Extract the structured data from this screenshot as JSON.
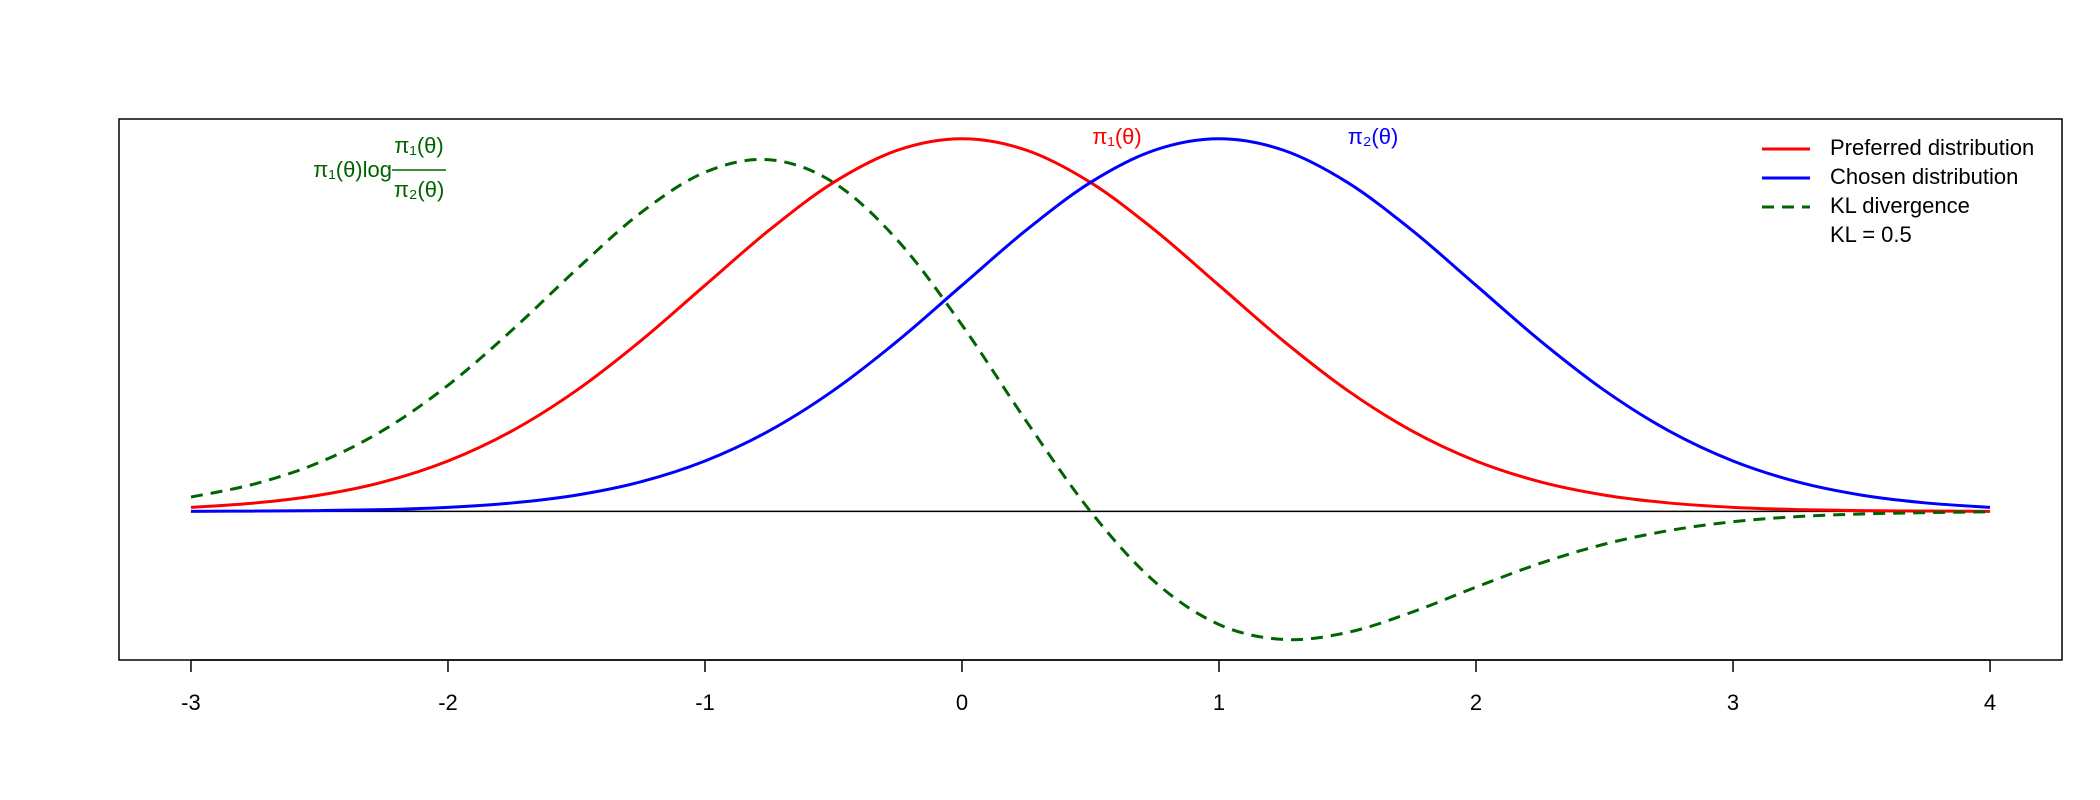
{
  "chart_data": {
    "type": "line",
    "x": [
      -3,
      -2.75,
      -2.5,
      -2.25,
      -2,
      -1.75,
      -1.5,
      -1.25,
      -1,
      -0.75,
      -0.5,
      -0.25,
      0,
      0.25,
      0.5,
      0.75,
      1,
      1.25,
      1.5,
      1.75,
      2,
      2.25,
      2.5,
      2.75,
      3,
      3.25,
      3.5,
      3.75,
      4
    ],
    "series": [
      {
        "name": "Preferred distribution",
        "color": "#ff0000",
        "dash": false,
        "values": [
          0.0044,
          0.0091,
          0.0175,
          0.0317,
          0.054,
          0.0863,
          0.1295,
          0.1826,
          0.242,
          0.3011,
          0.3521,
          0.3867,
          0.3989,
          0.3867,
          0.3521,
          0.3011,
          0.242,
          0.1826,
          0.1295,
          0.0863,
          0.054,
          0.0317,
          0.0175,
          0.0091,
          0.0044,
          0.002,
          0.0009,
          0.0004,
          0.0001
        ]
      },
      {
        "name": "Chosen distribution",
        "color": "#0000ff",
        "dash": false,
        "values": [
          0.0001,
          0.0004,
          0.0009,
          0.002,
          0.0044,
          0.0091,
          0.0175,
          0.0317,
          0.054,
          0.0863,
          0.1295,
          0.1826,
          0.242,
          0.3011,
          0.3521,
          0.3867,
          0.3989,
          0.3867,
          0.3521,
          0.3011,
          0.242,
          0.1826,
          0.1295,
          0.0863,
          0.054,
          0.0317,
          0.0175,
          0.0091,
          0.0044
        ]
      },
      {
        "name": "KL divergence",
        "color": "#006400",
        "dash": true,
        "values": [
          0.0154,
          0.0296,
          0.0525,
          0.0872,
          0.135,
          0.1942,
          0.259,
          0.3196,
          0.363,
          0.3764,
          0.3521,
          0.29,
          0.1995,
          0.0967,
          0,
          -0.0753,
          -0.121,
          -0.137,
          -0.1295,
          -0.1079,
          -0.081,
          -0.0555,
          -0.035,
          -0.0205,
          -0.011,
          -0.0055,
          -0.0027,
          -0.0013,
          -0.0004
        ]
      }
    ],
    "legend_note": "KL = 0.5",
    "legend_position": "top-right",
    "annotations": {
      "pi1": "π₁(θ)",
      "pi2": "π₂(θ)",
      "kl_prefix": "π₁(θ)log",
      "kl_numerator": "π₁(θ)",
      "kl_denominator": "π₂(θ)"
    },
    "hline": 0,
    "xlim": [
      -3.28,
      4.28
    ],
    "xticks": [
      -3,
      -2,
      -1,
      0,
      1,
      2,
      3,
      4
    ],
    "ylim": [
      -0.159,
      0.42
    ]
  }
}
